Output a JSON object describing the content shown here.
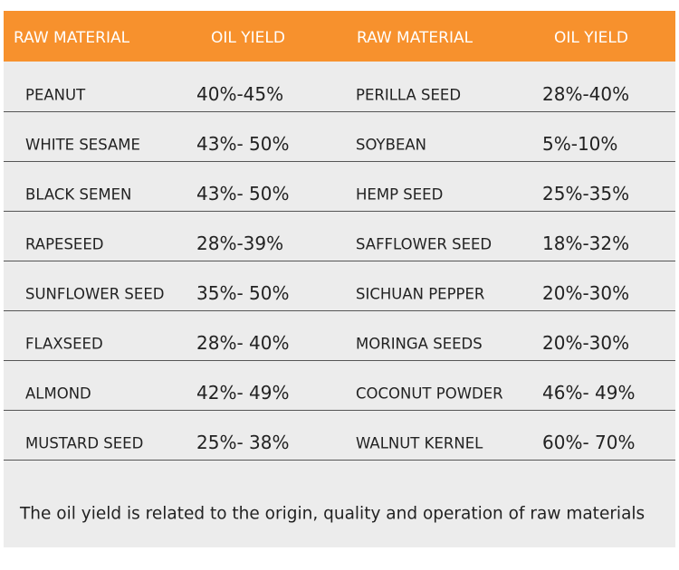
{
  "table": {
    "header": [
      "RAW MATERIAL",
      "OIL YIELD",
      "RAW MATERIAL",
      "OIL YIELD"
    ],
    "rows": [
      [
        "PEANUT",
        "40%-45%",
        "PERILLA SEED",
        "28%-40%"
      ],
      [
        "WHITE SESAME",
        "43%- 50%",
        "SOYBEAN",
        "5%-10%"
      ],
      [
        "BLACK SEMEN",
        "43%- 50%",
        "HEMP SEED",
        "25%-35%"
      ],
      [
        "RAPESEED",
        "28%-39%",
        "SAFFLOWER SEED",
        "18%-32%"
      ],
      [
        "SUNFLOWER SEED",
        "35%- 50%",
        "SICHUAN PEPPER",
        "20%-30%"
      ],
      [
        "FLAXSEED",
        "28%- 40%",
        "MORINGA SEEDS",
        "20%-30%"
      ],
      [
        "ALMOND",
        "42%- 49%",
        "COCONUT POWDER",
        "46%- 49%"
      ],
      [
        "MUSTARD SEED",
        "25%- 38%",
        "WALNUT KERNEL",
        "60%- 70%"
      ]
    ],
    "note": "The oil yield is related to the origin, quality and operation of raw materials"
  }
}
